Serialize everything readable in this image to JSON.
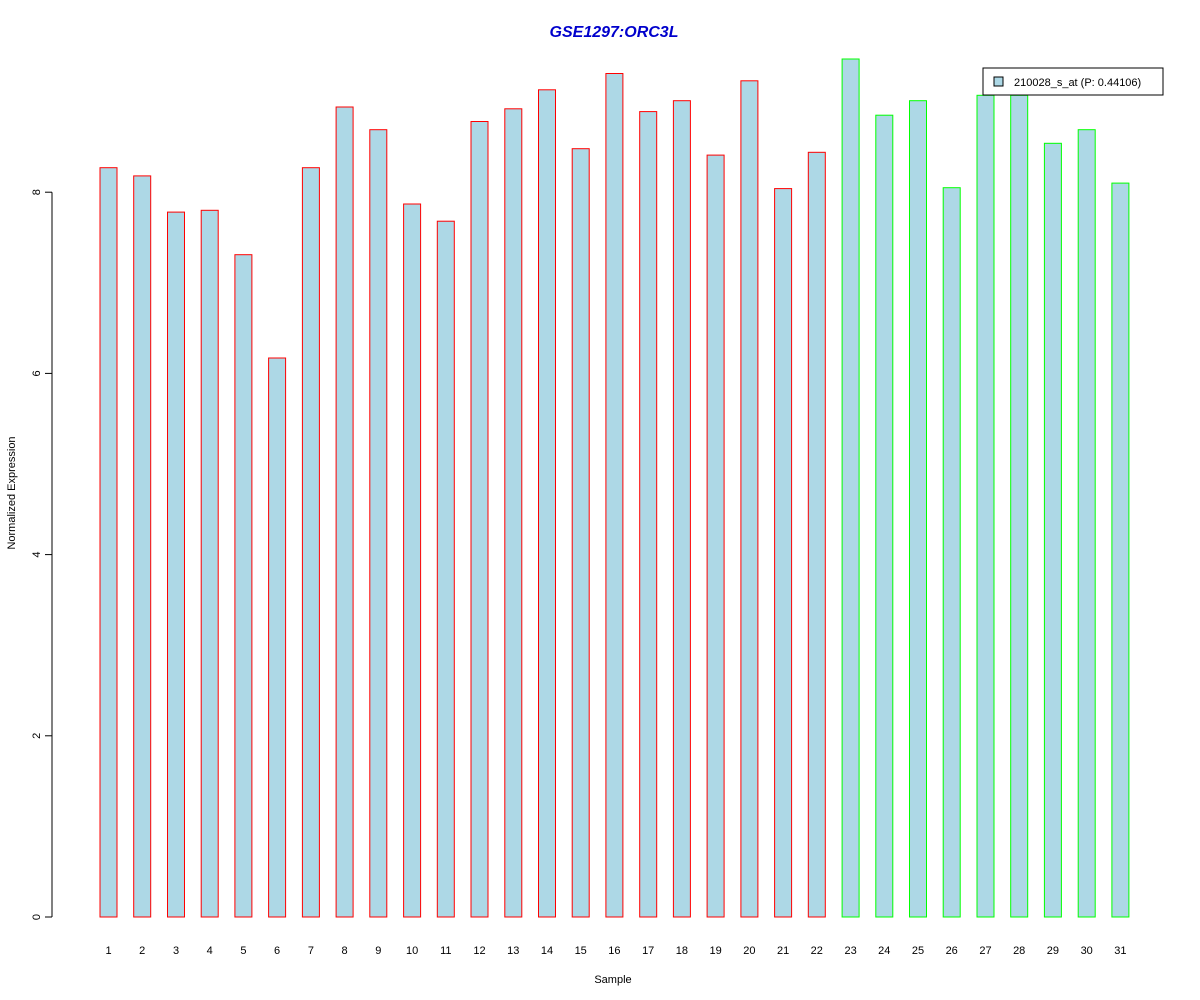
{
  "chart_data": {
    "type": "bar",
    "title": "GSE1297:ORC3L",
    "xlabel": "Sample",
    "ylabel": "Normalized Expression",
    "ylim": [
      0,
      9.5
    ],
    "yticks": [
      0,
      2,
      4,
      6,
      8
    ],
    "grid": false,
    "legend_position": "top-right",
    "legend": [
      {
        "label": "210028_s_at (P: 0.44106)",
        "fill": "#add8e6"
      }
    ],
    "categories": [
      "1",
      "2",
      "3",
      "4",
      "5",
      "6",
      "7",
      "8",
      "9",
      "10",
      "11",
      "12",
      "13",
      "14",
      "15",
      "16",
      "17",
      "18",
      "19",
      "20",
      "21",
      "22",
      "23",
      "24",
      "25",
      "26",
      "27",
      "28",
      "29",
      "30",
      "31"
    ],
    "values": [
      8.27,
      8.18,
      7.78,
      7.8,
      7.31,
      6.17,
      8.27,
      8.94,
      8.69,
      7.87,
      7.68,
      8.78,
      8.92,
      9.13,
      8.48,
      9.31,
      8.89,
      9.01,
      8.41,
      9.23,
      8.04,
      8.44,
      9.47,
      8.85,
      9.01,
      8.05,
      9.07,
      9.07,
      8.54,
      8.69,
      8.1
    ],
    "group_outline_colors": [
      "#ff0000",
      "#ff0000",
      "#ff0000",
      "#ff0000",
      "#ff0000",
      "#ff0000",
      "#ff0000",
      "#ff0000",
      "#ff0000",
      "#ff0000",
      "#ff0000",
      "#ff0000",
      "#ff0000",
      "#ff0000",
      "#ff0000",
      "#ff0000",
      "#ff0000",
      "#ff0000",
      "#ff0000",
      "#ff0000",
      "#ff0000",
      "#ff0000",
      "#00ff00",
      "#00ff00",
      "#00ff00",
      "#00ff00",
      "#00ff00",
      "#00ff00",
      "#00ff00",
      "#00ff00",
      "#00ff00"
    ],
    "bar_fill": "#add8e6",
    "title_color": "#0000cc"
  }
}
